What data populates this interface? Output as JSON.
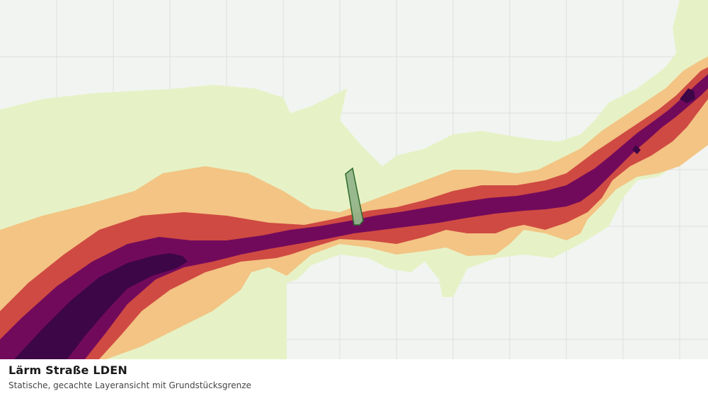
{
  "map": {
    "layer_title": "Lärm Straße LDEN",
    "layer_subtitle": "Statische, gecachte Layeransicht mit Grundstücksgrenze"
  },
  "colors": {
    "background": "#f2f4f1",
    "grid": "#dcdfdc",
    "noise_band_1": "#e6f2c6",
    "noise_band_2": "#f3c484",
    "noise_band_3": "#cf4a42",
    "noise_band_4": "#720a5c",
    "noise_band_5": "#3d0647",
    "parcel_fill": "#93b48a",
    "parcel_stroke": "#2e6b2e"
  }
}
